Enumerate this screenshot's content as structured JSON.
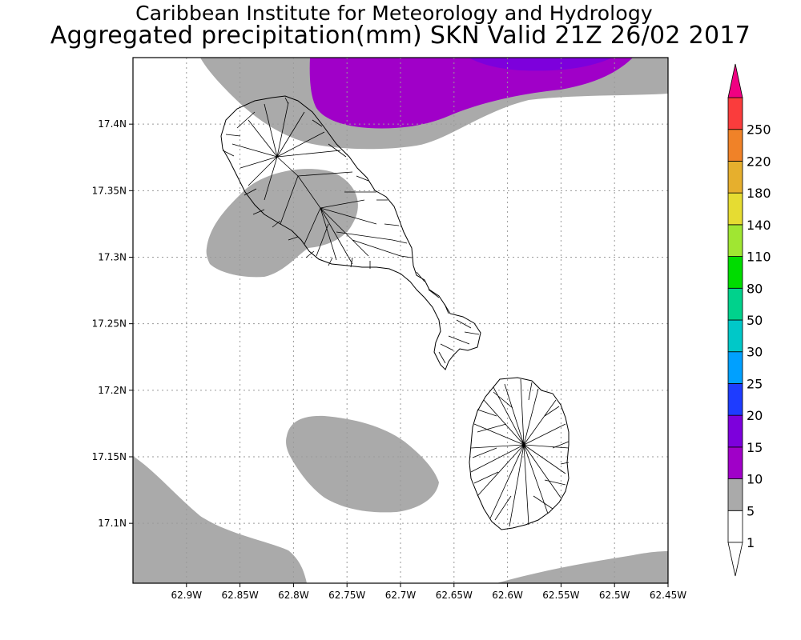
{
  "title": {
    "line1": "Caribbean Institute for Meteorology and Hydrology",
    "line2": "Aggregated precipitation(mm) SKN Valid 21Z 26/02 2017"
  },
  "map": {
    "lon_range": [
      -62.95,
      -62.45
    ],
    "lat_range": [
      17.055,
      17.45
    ],
    "lon_ticks": [
      {
        "value": -62.9,
        "label": "62.9W"
      },
      {
        "value": -62.85,
        "label": "62.85W"
      },
      {
        "value": -62.8,
        "label": "62.8W"
      },
      {
        "value": -62.75,
        "label": "62.75W"
      },
      {
        "value": -62.7,
        "label": "62.7W"
      },
      {
        "value": -62.65,
        "label": "62.65W"
      },
      {
        "value": -62.6,
        "label": "62.6W"
      },
      {
        "value": -62.55,
        "label": "62.55W"
      },
      {
        "value": -62.5,
        "label": "62.5W"
      },
      {
        "value": -62.45,
        "label": "62.45W"
      }
    ],
    "lat_ticks": [
      {
        "value": 17.1,
        "label": "17.1N"
      },
      {
        "value": 17.15,
        "label": "17.15N"
      },
      {
        "value": 17.2,
        "label": "17.2N"
      },
      {
        "value": 17.25,
        "label": "17.25N"
      },
      {
        "value": 17.3,
        "label": "17.3N"
      },
      {
        "value": 17.35,
        "label": "17.35N"
      },
      {
        "value": 17.4,
        "label": "17.4N"
      }
    ],
    "grid": true,
    "colors": {
      "land_outline": "#000000",
      "gridline": "#9a9a9a",
      "frame": "#000000"
    }
  },
  "precipitation_fields": [
    {
      "level": "1-5 mm",
      "color": "#aaaaaa",
      "region": "north-strip"
    },
    {
      "level": "1-5 mm",
      "color": "#aaaaaa",
      "region": "west-of-st-kitts"
    },
    {
      "level": "1-5 mm",
      "color": "#aaaaaa",
      "region": "central-south"
    },
    {
      "level": "1-5 mm",
      "color": "#aaaaaa",
      "region": "southwest-corner"
    },
    {
      "level": "1-5 mm",
      "color": "#aaaaaa",
      "region": "southeast-corner"
    },
    {
      "level": "5-10 mm",
      "color": "#a000c8",
      "region": "north-center"
    },
    {
      "level": "10-15 mm",
      "color": "#7d00dc",
      "region": "north-center-core"
    }
  ],
  "colorbar": {
    "bins": [
      {
        "label": "1",
        "color": "#ffffff"
      },
      {
        "label": "5",
        "color": "#aaaaaa"
      },
      {
        "label": "10",
        "color": "#a000c8"
      },
      {
        "label": "15",
        "color": "#7d00dc"
      },
      {
        "label": "20",
        "color": "#1e3cff"
      },
      {
        "label": "25",
        "color": "#00a0ff"
      },
      {
        "label": "30",
        "color": "#00c8c8"
      },
      {
        "label": "50",
        "color": "#00d28c"
      },
      {
        "label": "80",
        "color": "#00dc00"
      },
      {
        "label": "110",
        "color": "#a0e632"
      },
      {
        "label": "140",
        "color": "#e6dc32"
      },
      {
        "label": "180",
        "color": "#e6af2d"
      },
      {
        "label": "220",
        "color": "#f08228"
      },
      {
        "label": "250",
        "color": "#fa3c3c"
      }
    ],
    "overflow_color": "#f00082",
    "underflow_color": "#ffffff"
  }
}
